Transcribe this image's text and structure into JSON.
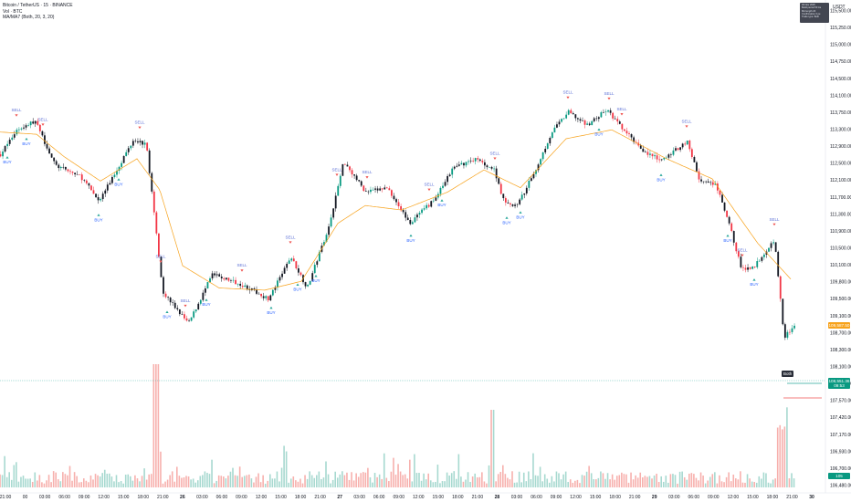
{
  "header": {
    "symbol_line": "Bitcoin / TetherUS · 15 · BINANCE",
    "vol_line": "Vol · BTC",
    "indicator_line": "MA/MA7 (Both, 20, 3, 20)"
  },
  "info_box": [
    "30 Nov 2025",
    "Build period 50 tra",
    "MA length 20",
    "Confirmation 3 pe",
    "Trade type: Both"
  ],
  "currency": "USDT",
  "price_tags": {
    "ma_value": "109,587.50",
    "last_price": "108,551.36",
    "last_countdown": "09:53",
    "volume_value": "105"
  },
  "signal_badge": "Both",
  "colors": {
    "up": "#26a69a",
    "down": "#ef5350",
    "up_candle": "#089981",
    "down_candle": "#f23645",
    "dark_candle": "#131722",
    "ma": "#f7a21b",
    "sell_label": "#5b6fd6",
    "buy_label": "#2962ff"
  },
  "chart_data": [
    {
      "type": "candlestick",
      "series": [
        {
          "name": "MA/MA7 (Both, 20, 3, 20)",
          "role": "moving-average"
        }
      ],
      "y_ticks": [
        "115,500.00",
        "115,250.00",
        "115,000.00",
        "114,750.00",
        "114,500.00",
        "114,100.00",
        "113,750.00",
        "113,300.00",
        "112,900.00",
        "112,500.00",
        "112,100.00",
        "111,700.00",
        "111,300.00",
        "110,900.00",
        "110,500.00",
        "110,100.00",
        "109,800.00",
        "109,500.00",
        "109,100.00",
        "108,700.00",
        "108,300.00",
        "108,100.00",
        "107,880.00",
        "107,570.00",
        "107,420.00",
        "107,170.00",
        "106,930.00",
        "106,700.00",
        "106,480.00"
      ],
      "ylim": [
        106480,
        115700
      ],
      "x_ticks": [
        "21:00",
        "00",
        "03:00",
        "06:00",
        "09:00",
        "12:00",
        "15:00",
        "18:00",
        "21:00",
        "26",
        "03:00",
        "06:00",
        "09:00",
        "12:00",
        "15:00",
        "18:00",
        "21:00",
        "27",
        "03:00",
        "06:00",
        "09:00",
        "12:00",
        "15:00",
        "18:00",
        "21:00",
        "28",
        "03:00",
        "06:00",
        "09:00",
        "12:00",
        "15:00",
        "18:00",
        "21:00",
        "29",
        "03:00",
        "06:00",
        "09:00",
        "12:00",
        "15:00",
        "18:00",
        "21:00",
        "30"
      ],
      "x_day_ticks": [
        "26",
        "27",
        "28",
        "29",
        "30"
      ],
      "price_keypoints": [
        {
          "t": 0,
          "p": 112400
        },
        {
          "t": 18,
          "p": 112950
        },
        {
          "t": 38,
          "p": 113150
        },
        {
          "t": 60,
          "p": 112150
        },
        {
          "t": 88,
          "p": 111900
        },
        {
          "t": 108,
          "p": 111350
        },
        {
          "t": 126,
          "p": 112000
        },
        {
          "t": 146,
          "p": 112750
        },
        {
          "t": 160,
          "p": 112600
        },
        {
          "t": 178,
          "p": 109300
        },
        {
          "t": 206,
          "p": 108600
        },
        {
          "t": 232,
          "p": 109700
        },
        {
          "t": 262,
          "p": 109500
        },
        {
          "t": 294,
          "p": 109150
        },
        {
          "t": 318,
          "p": 110100
        },
        {
          "t": 336,
          "p": 109400
        },
        {
          "t": 360,
          "p": 110800
        },
        {
          "t": 376,
          "p": 112250
        },
        {
          "t": 400,
          "p": 111550
        },
        {
          "t": 424,
          "p": 111650
        },
        {
          "t": 448,
          "p": 110850
        },
        {
          "t": 476,
          "p": 111400
        },
        {
          "t": 496,
          "p": 112100
        },
        {
          "t": 520,
          "p": 112300
        },
        {
          "t": 541,
          "p": 112050
        },
        {
          "t": 552,
          "p": 111300
        },
        {
          "t": 566,
          "p": 111250
        },
        {
          "t": 586,
          "p": 112050
        },
        {
          "t": 604,
          "p": 112900
        },
        {
          "t": 622,
          "p": 113350
        },
        {
          "t": 642,
          "p": 113050
        },
        {
          "t": 664,
          "p": 113400
        },
        {
          "t": 682,
          "p": 112950
        },
        {
          "t": 706,
          "p": 112450
        },
        {
          "t": 724,
          "p": 112250
        },
        {
          "t": 752,
          "p": 112700
        },
        {
          "t": 766,
          "p": 111800
        },
        {
          "t": 784,
          "p": 111700
        },
        {
          "t": 800,
          "p": 110700
        },
        {
          "t": 812,
          "p": 109800
        },
        {
          "t": 826,
          "p": 109900
        },
        {
          "t": 848,
          "p": 110500
        },
        {
          "t": 858,
          "p": 108300
        },
        {
          "t": 870,
          "p": 108550
        }
      ],
      "ma_keypoints": [
        {
          "t": 0,
          "p": 112900
        },
        {
          "t": 40,
          "p": 112850
        },
        {
          "t": 70,
          "p": 112350
        },
        {
          "t": 110,
          "p": 111800
        },
        {
          "t": 150,
          "p": 112300
        },
        {
          "t": 175,
          "p": 111600
        },
        {
          "t": 200,
          "p": 109900
        },
        {
          "t": 240,
          "p": 109400
        },
        {
          "t": 290,
          "p": 109350
        },
        {
          "t": 330,
          "p": 109550
        },
        {
          "t": 370,
          "p": 110850
        },
        {
          "t": 400,
          "p": 111250
        },
        {
          "t": 440,
          "p": 111150
        },
        {
          "t": 490,
          "p": 111550
        },
        {
          "t": 530,
          "p": 112050
        },
        {
          "t": 570,
          "p": 111650
        },
        {
          "t": 620,
          "p": 112750
        },
        {
          "t": 670,
          "p": 112950
        },
        {
          "t": 730,
          "p": 112300
        },
        {
          "t": 780,
          "p": 111850
        },
        {
          "t": 830,
          "p": 110400
        },
        {
          "t": 866,
          "p": 109600
        }
      ],
      "sell_signals_x": [
        18,
        47,
        153,
        176,
        203,
        265,
        318,
        369,
        402,
        470,
        542,
        622,
        667,
        681,
        752,
        813,
        848
      ],
      "buy_signals_x": [
        8,
        29,
        108,
        130,
        183,
        226,
        297,
        326,
        346,
        450,
        484,
        555,
        570,
        656,
        724,
        797,
        826
      ],
      "sell_label": "SELL",
      "buy_label": "BUY"
    }
  ]
}
